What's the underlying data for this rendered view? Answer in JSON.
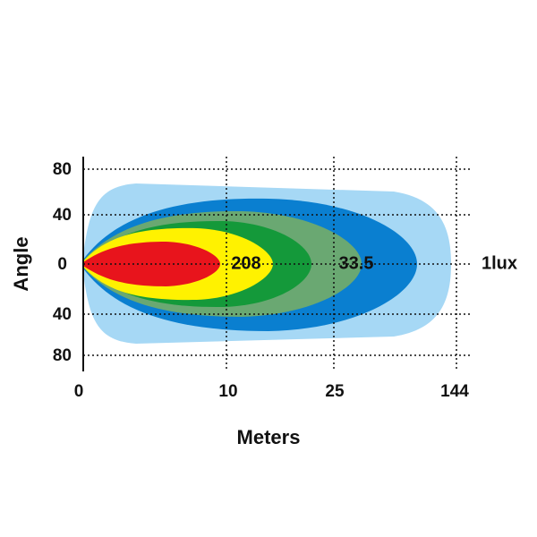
{
  "axis_labels": {
    "y": "Angle",
    "x": "Meters"
  },
  "y_tick_labels": [
    "80",
    "40",
    "0",
    "40",
    "80"
  ],
  "x_tick_labels": [
    "0",
    "10",
    "25",
    "144"
  ],
  "lux_labels": [
    "208",
    "33.5",
    "1lux"
  ]
}
